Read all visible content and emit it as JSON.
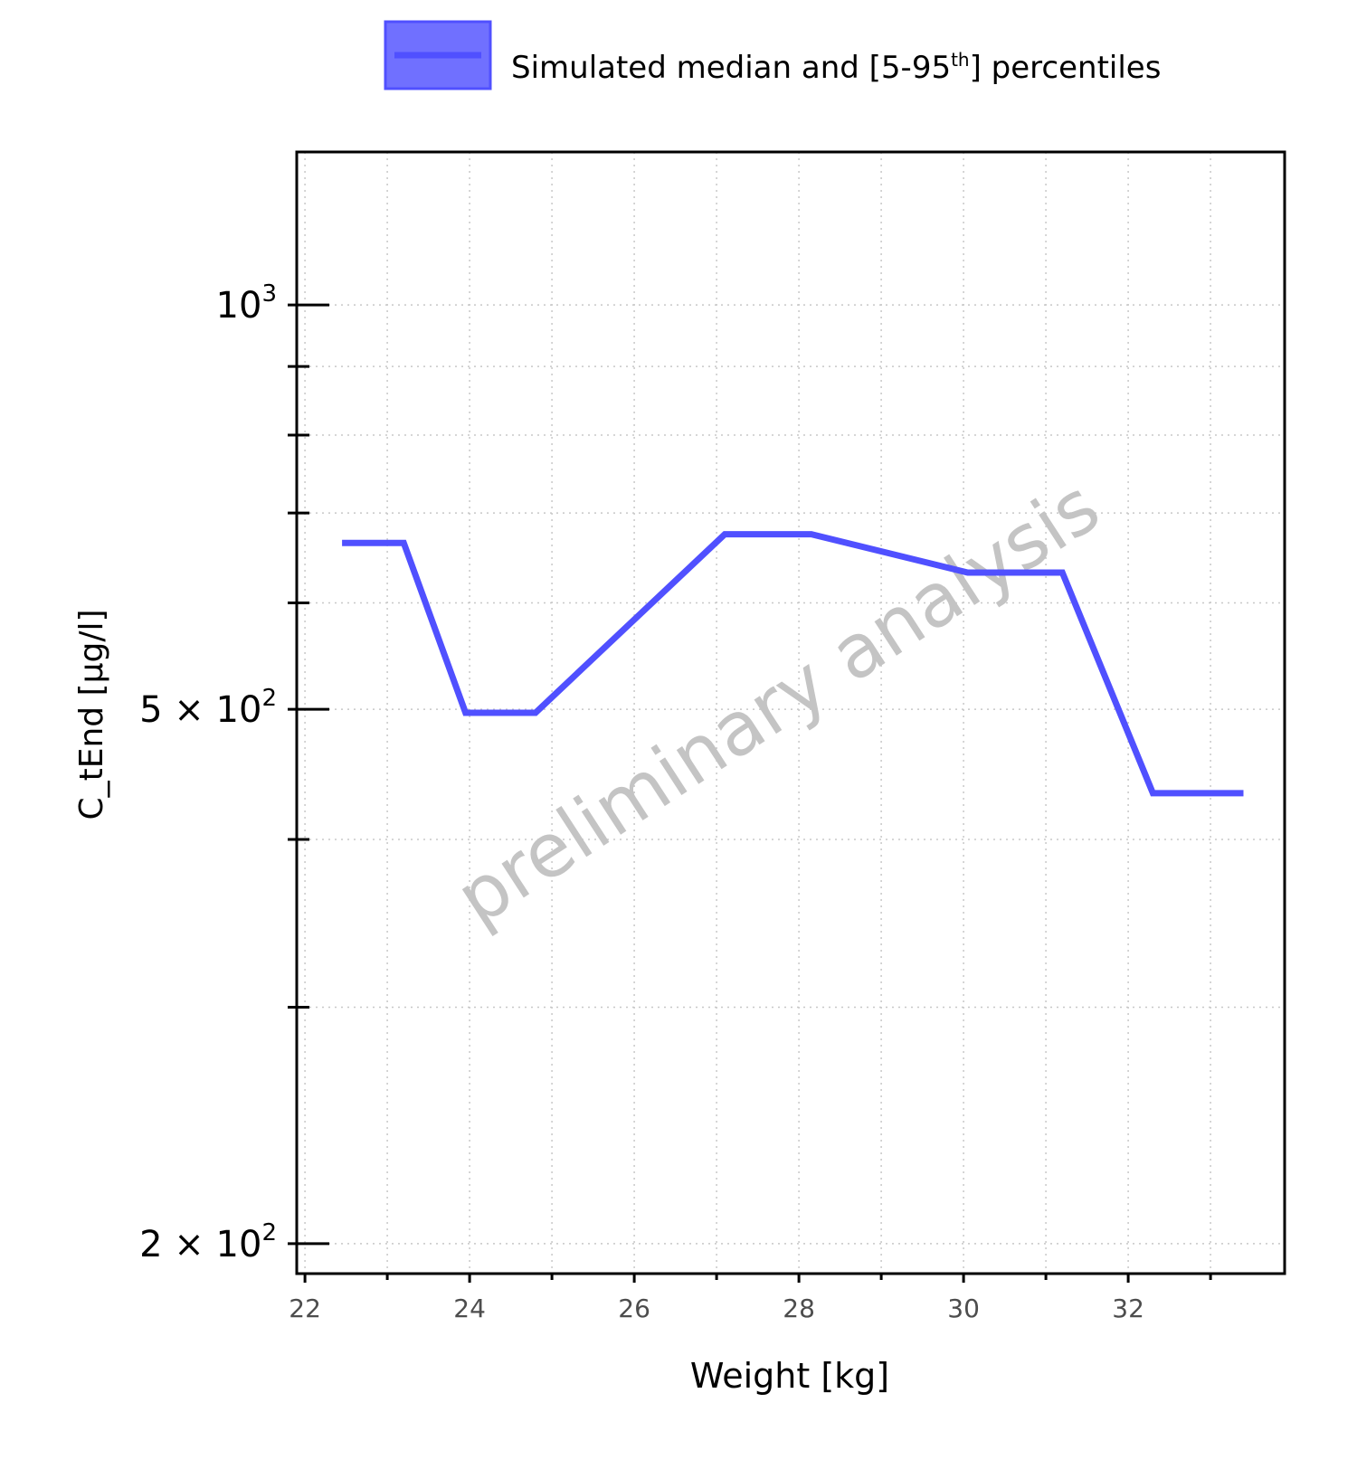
{
  "chart_data": {
    "type": "line",
    "legend": {
      "position": "top",
      "label_main": "Simulated median and [5-95",
      "label_sup": "th",
      "label_end": "] percentiles",
      "color": "#5050ff"
    },
    "xlabel": "Weight [kg]",
    "ylabel": "C_tEnd [µg/l]",
    "x_ticks": [
      "22",
      "24",
      "26",
      "28",
      "30",
      "32"
    ],
    "y_ticks": [
      {
        "value": 1000,
        "mant": "",
        "base": "10",
        "exp": "3"
      },
      {
        "value": 500,
        "mant": "5 × ",
        "base": "10",
        "exp": "2"
      },
      {
        "value": 200,
        "mant": "2 × ",
        "base": "10",
        "exp": "2"
      }
    ],
    "y_scale": "log",
    "xlim": [
      21.9,
      33.9
    ],
    "ylim": [
      190,
      1300
    ],
    "grid": true,
    "watermark": "preliminary analysis",
    "series": [
      {
        "name": "Simulated median and [5-95th] percentiles",
        "color": "#5050ff",
        "x": [
          22.45,
          23.2,
          23.95,
          24.8,
          27.1,
          28.15,
          30.05,
          31.2,
          32.3,
          33.4
        ],
        "y": [
          665,
          665,
          497,
          497,
          675,
          675,
          632,
          632,
          433,
          433
        ]
      }
    ]
  }
}
